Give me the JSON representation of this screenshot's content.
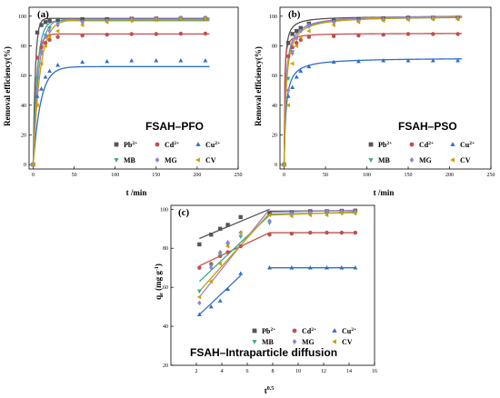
{
  "series_styles": [
    {
      "label": "Pb",
      "sup": "2+",
      "color": "#555555",
      "marker": "square"
    },
    {
      "label": "Cd",
      "sup": "2+",
      "color": "#c0504d",
      "marker": "circle"
    },
    {
      "label": "Cu",
      "sup": "2+",
      "color": "#2e6fc7",
      "marker": "triangle-up"
    },
    {
      "label": "MB",
      "sup": "",
      "color": "#3aa88f",
      "marker": "triangle-down"
    },
    {
      "label": "MG",
      "sup": "",
      "color": "#9b7fd1",
      "marker": "diamond"
    },
    {
      "label": "CV",
      "sup": "",
      "color": "#c9a000",
      "marker": "triangle-left"
    }
  ],
  "chart_data": [
    {
      "id": "a",
      "type": "scatter",
      "panel_label": "(a)",
      "model_title": "FSAH–PFO",
      "xlabel": "t /min",
      "ylabel": "Removal efficiency(%)",
      "xlim": [
        -5,
        250
      ],
      "ylim": [
        -3,
        106
      ],
      "xticks": [
        0,
        50,
        100,
        150,
        200,
        250
      ],
      "yticks": [
        0,
        20,
        40,
        60,
        80,
        100
      ],
      "series": [
        {
          "x": [
            0,
            5,
            10,
            15,
            20,
            30,
            60,
            90,
            120,
            150,
            180,
            210
          ],
          "y": [
            0,
            89,
            94,
            96,
            97,
            97.5,
            98,
            98,
            98.3,
            98.4,
            98.5,
            98.5
          ],
          "fit": {
            "type": "pfo",
            "qe": 98.5,
            "k": 0.38
          }
        },
        {
          "x": [
            0,
            5,
            10,
            15,
            20,
            30,
            60,
            90,
            120,
            150,
            180,
            210
          ],
          "y": [
            0,
            72,
            79,
            82,
            84,
            86,
            87,
            87.5,
            88,
            88,
            88.2,
            88.3
          ],
          "fit": {
            "type": "pfo",
            "qe": 88,
            "k": 0.25
          }
        },
        {
          "x": [
            0,
            5,
            10,
            15,
            20,
            30,
            60,
            90,
            120,
            150,
            180,
            210
          ],
          "y": [
            0,
            46,
            51,
            59,
            63,
            67,
            69,
            69.5,
            70,
            70,
            70,
            70
          ],
          "fit": {
            "type": "pfo",
            "qe": 66,
            "k": 0.11
          }
        },
        {
          "x": [
            0,
            5,
            10,
            15,
            20,
            30,
            60,
            90,
            120,
            150,
            180,
            210
          ],
          "y": [
            0,
            58,
            76,
            87,
            92,
            95,
            96,
            96.5,
            97,
            97.5,
            98,
            98
          ],
          "fit": {
            "type": "pfo",
            "qe": 97,
            "k": 0.2
          }
        },
        {
          "x": [
            0,
            5,
            10,
            15,
            20,
            30,
            60,
            90,
            120,
            150,
            180,
            210
          ],
          "y": [
            0,
            50,
            75,
            86,
            90,
            94,
            96,
            97,
            98,
            98.5,
            99,
            99
          ],
          "fit": {
            "type": "pfo",
            "qe": 98,
            "k": 0.15
          }
        },
        {
          "x": [
            0,
            5,
            10,
            15,
            20,
            30,
            60,
            90,
            120,
            150,
            180,
            210
          ],
          "y": [
            0,
            40,
            68,
            80,
            86,
            90,
            94,
            96,
            97,
            97.5,
            98,
            98
          ],
          "fit": {
            "type": "pfo",
            "qe": 97.5,
            "k": 0.12
          }
        }
      ]
    },
    {
      "id": "b",
      "type": "scatter",
      "panel_label": "(b)",
      "model_title": "FSAH–PSO",
      "xlabel": "t /min",
      "ylabel": "Removal efficiency(%)",
      "xlim": [
        -5,
        250
      ],
      "ylim": [
        -3,
        106
      ],
      "xticks": [
        0,
        50,
        100,
        150,
        200,
        250
      ],
      "yticks": [
        0,
        20,
        40,
        60,
        80,
        100
      ],
      "series": [
        {
          "x": [
            0,
            5,
            10,
            15,
            20,
            30,
            60,
            90,
            120,
            150,
            180,
            210
          ],
          "y": [
            0,
            82,
            88,
            90,
            92,
            95,
            97.5,
            98,
            98.5,
            99,
            99,
            99
          ],
          "fit": {
            "type": "pso",
            "qe": 100,
            "k": 0.012
          }
        },
        {
          "x": [
            0,
            5,
            10,
            15,
            20,
            30,
            60,
            90,
            120,
            150,
            180,
            210
          ],
          "y": [
            0,
            73,
            79,
            82,
            84,
            86,
            86.5,
            87,
            87.5,
            88,
            88,
            88
          ],
          "fit": {
            "type": "pso",
            "qe": 88.5,
            "k": 0.025
          }
        },
        {
          "x": [
            0,
            5,
            10,
            15,
            20,
            30,
            60,
            90,
            120,
            150,
            180,
            210
          ],
          "y": [
            0,
            46,
            52,
            59,
            63,
            66,
            69,
            69.5,
            70,
            70,
            70,
            70
          ],
          "fit": {
            "type": "pso",
            "qe": 72,
            "k": 0.006
          }
        },
        {
          "x": [
            0,
            5,
            10,
            15,
            20,
            30,
            60,
            90,
            120,
            150,
            180,
            210
          ],
          "y": [
            0,
            58,
            76,
            85,
            90,
            93,
            96,
            97,
            97.5,
            98,
            98,
            98
          ],
          "fit": {
            "type": "pso",
            "qe": 100,
            "k": 0.005
          }
        },
        {
          "x": [
            0,
            5,
            10,
            15,
            20,
            30,
            60,
            90,
            120,
            150,
            180,
            210
          ],
          "y": [
            0,
            50,
            75,
            85,
            90,
            94,
            96,
            97,
            98,
            98.5,
            99,
            99
          ],
          "fit": {
            "type": "pso",
            "qe": 101,
            "k": 0.0045
          }
        },
        {
          "x": [
            0,
            5,
            10,
            15,
            20,
            30,
            60,
            90,
            120,
            150,
            180,
            210
          ],
          "y": [
            0,
            40,
            68,
            80,
            86,
            90,
            94,
            96,
            97,
            97.5,
            98,
            98
          ],
          "fit": {
            "type": "pso",
            "qe": 100.5,
            "k": 0.004
          }
        }
      ]
    },
    {
      "id": "c",
      "type": "scatter",
      "panel_label": "(c)",
      "model_title": "FSAH–Intraparticle diffusion",
      "xlabel": "t",
      "xlabel_sup": "0.5",
      "ylabel": "q",
      "ylabel_sub": "e",
      "ylabel_unit": " (mg g",
      "ylabel_unit_sup": "-1",
      "ylabel_unit_end": ")",
      "xlim": [
        0,
        16
      ],
      "ylim": [
        20,
        102
      ],
      "xticks": [
        2,
        4,
        6,
        8,
        10,
        12,
        14,
        16
      ],
      "yticks": [
        20,
        40,
        60,
        80,
        100
      ],
      "series": [
        {
          "x": [
            2.24,
            3.16,
            3.87,
            4.47,
            5.48,
            7.75,
            9.49,
            10.95,
            12.25,
            13.42,
            14.49
          ],
          "y": [
            82,
            87,
            90,
            92,
            96,
            98,
            98.5,
            99,
            99,
            99.2,
            99.3
          ],
          "segments": [
            {
              "x": [
                2.24,
                7.75
              ],
              "y": [
                85,
                100
              ]
            },
            {
              "x": [
                7.75,
                14.49
              ],
              "y": [
                99,
                99.3
              ]
            }
          ]
        },
        {
          "x": [
            2.24,
            3.16,
            3.87,
            4.47,
            5.48,
            7.75,
            9.49,
            10.95,
            12.25,
            13.42,
            14.49
          ],
          "y": [
            70,
            72,
            76,
            78,
            81,
            87,
            87.5,
            88,
            88,
            88,
            88
          ],
          "segments": [
            {
              "x": [
                2.24,
                7.75
              ],
              "y": [
                71,
                88
              ]
            },
            {
              "x": [
                7.75,
                14.49
              ],
              "y": [
                88,
                88
              ]
            }
          ]
        },
        {
          "x": [
            2.24,
            3.16,
            3.87,
            4.47,
            5.48,
            7.75,
            9.49,
            10.95,
            12.25,
            13.42,
            14.49
          ],
          "y": [
            46,
            50,
            53,
            59,
            67,
            70,
            70,
            70,
            70,
            70,
            70
          ],
          "segments": [
            {
              "x": [
                2.24,
                5.48
              ],
              "y": [
                46,
                66
              ]
            },
            {
              "x": [
                7.75,
                14.49
              ],
              "y": [
                70,
                70
              ]
            }
          ]
        },
        {
          "x": [
            2.24,
            3.16,
            3.87,
            4.47,
            5.48,
            7.75,
            9.49,
            10.95,
            12.25,
            13.42,
            14.49
          ],
          "y": [
            58,
            71,
            77,
            82,
            86,
            93,
            97,
            97.5,
            98,
            98,
            98
          ],
          "segments": [
            {
              "x": [
                2.24,
                7.75
              ],
              "y": [
                63,
                97
              ]
            },
            {
              "x": [
                7.75,
                14.49
              ],
              "y": [
                97.5,
                98.3
              ]
            }
          ]
        },
        {
          "x": [
            2.24,
            3.16,
            3.87,
            4.47,
            5.48,
            7.75,
            9.49,
            10.95,
            12.25,
            13.42,
            14.49
          ],
          "y": [
            52,
            70,
            78,
            83,
            88,
            94,
            98,
            98.5,
            99,
            99,
            99
          ],
          "segments": [
            {
              "x": [
                2.24,
                7.75
              ],
              "y": [
                55,
                100
              ]
            },
            {
              "x": [
                7.75,
                14.49
              ],
              "y": [
                98.5,
                99.5
              ]
            }
          ]
        },
        {
          "x": [
            2.24,
            3.16,
            3.87,
            4.47,
            5.48,
            7.75,
            9.49,
            10.95,
            12.25,
            13.42,
            14.49
          ],
          "y": [
            55,
            63,
            72,
            81,
            88,
            97,
            96.5,
            97,
            97,
            98,
            98
          ],
          "segments": [
            {
              "x": [
                2.24,
                7.75
              ],
              "y": [
                58,
                98
              ]
            },
            {
              "x": [
                7.75,
                14.49
              ],
              "y": [
                97,
                98.6
              ]
            }
          ]
        }
      ]
    }
  ]
}
